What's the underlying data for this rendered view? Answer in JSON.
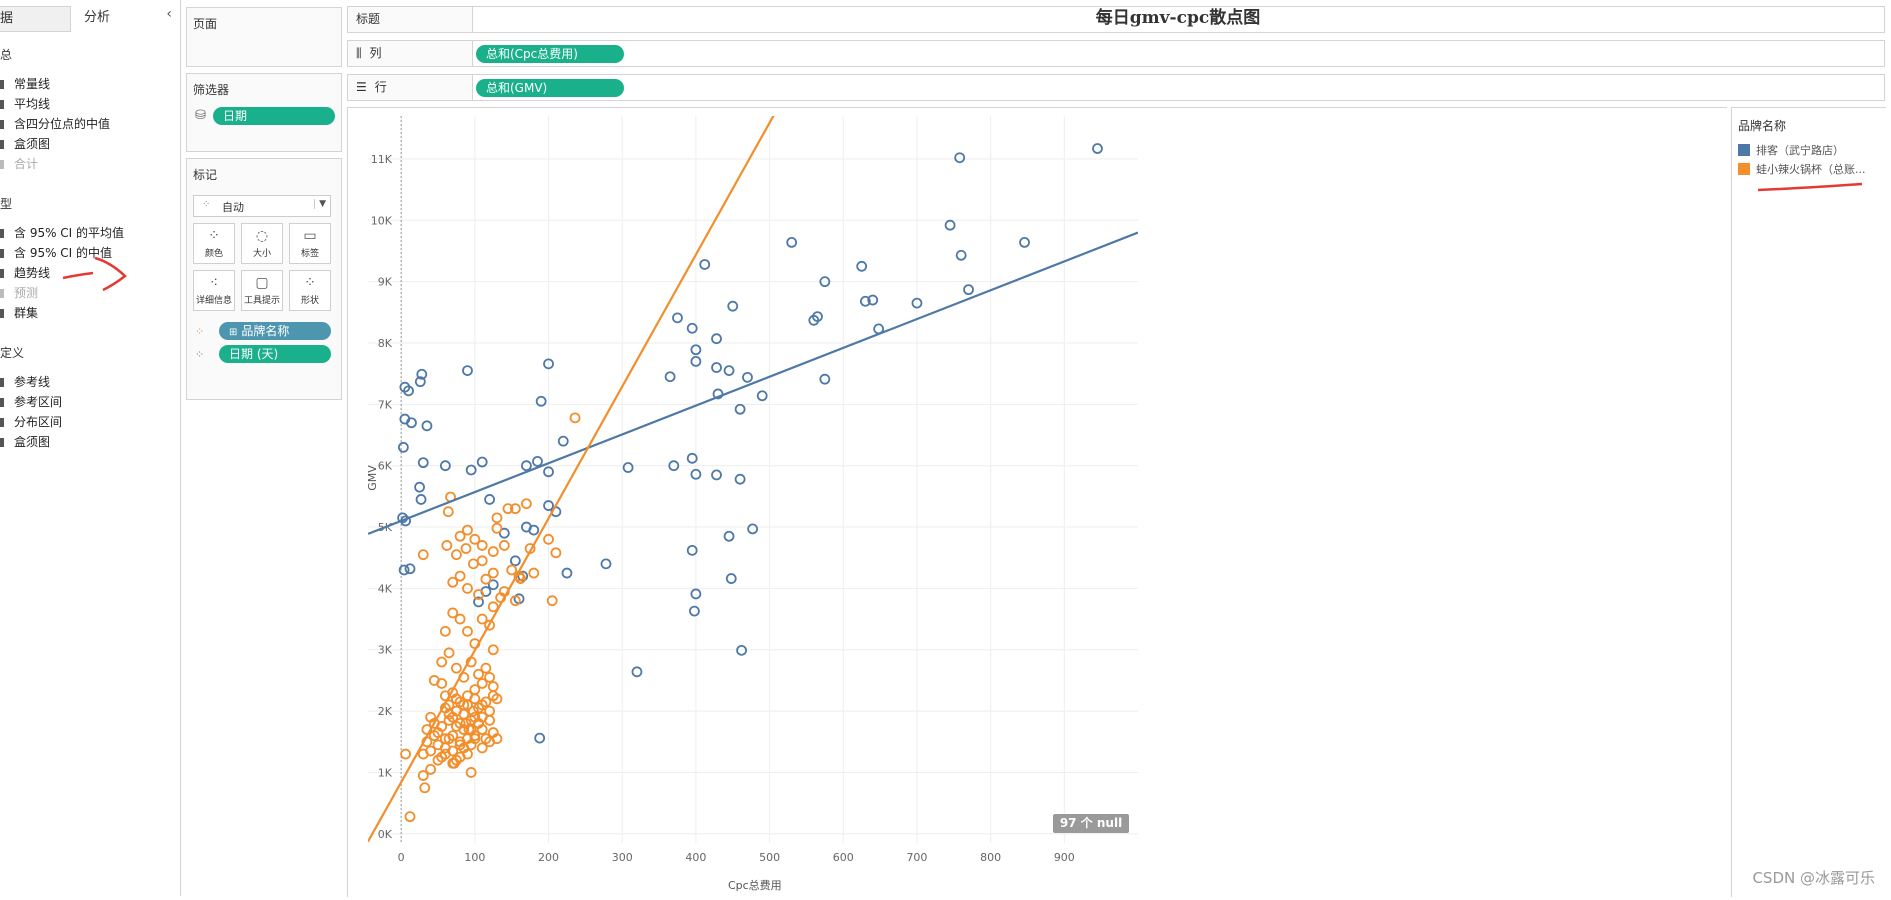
{
  "left_pane": {
    "tab_data": "据",
    "tab_analysis": "分析",
    "sections": [
      {
        "title": "汇总",
        "items": [
          {
            "label": "常量线",
            "enabled": true
          },
          {
            "label": "平均线",
            "enabled": true
          },
          {
            "label": "含四分位点的中值",
            "enabled": true
          },
          {
            "label": "盒须图",
            "enabled": true
          },
          {
            "label": "合计",
            "enabled": false
          }
        ]
      },
      {
        "title": "模型",
        "items": [
          {
            "label": "含 95% CI 的平均值",
            "enabled": true
          },
          {
            "label": "含 95% CI 的中值",
            "enabled": true
          },
          {
            "label": "趋势线",
            "enabled": true
          },
          {
            "label": "预测",
            "enabled": false
          },
          {
            "label": "群集",
            "enabled": true
          }
        ]
      },
      {
        "title": "自定义",
        "items": [
          {
            "label": "参考线",
            "enabled": true
          },
          {
            "label": "参考区间",
            "enabled": true
          },
          {
            "label": "分布区间",
            "enabled": true
          },
          {
            "label": "盒须图",
            "enabled": true
          }
        ]
      }
    ]
  },
  "cards": {
    "pages_title": "页面",
    "filters_title": "筛选器",
    "filter_pill": "日期",
    "marks_title": "标记",
    "marks_type": "自动",
    "mark_buttons": [
      "颜色",
      "大小",
      "标签",
      "详细信息",
      "工具提示",
      "形状"
    ],
    "mark_pills": [
      "品牌名称",
      "日期 (天)"
    ]
  },
  "shelves": {
    "title_label": "标题",
    "title_value": "每日gmv-cpc散点图",
    "columns_label": "列",
    "columns_pill": "总和(Cpc总费用)",
    "rows_label": "行",
    "rows_pill": "总和(GMV)"
  },
  "legend": {
    "title": "品牌名称",
    "items": [
      {
        "label": "排客（武宁路店）",
        "color": "#4e79a7"
      },
      {
        "label": "蛙小辣火锅杯（总账...",
        "color": "#f28e2b"
      }
    ]
  },
  "null_badge": "97 个 null",
  "watermark": "CSDN @冰露可乐",
  "chart_data": {
    "type": "scatter",
    "title": "每日gmv-cpc散点图",
    "xlabel": "Cpc总费用",
    "ylabel": "GMV",
    "xlim": [
      -45,
      1000
    ],
    "ylim": [
      -150,
      11700
    ],
    "x_ticks": [
      0,
      100,
      200,
      300,
      400,
      500,
      600,
      700,
      800,
      900
    ],
    "y_ticks": [
      0,
      1000,
      2000,
      3000,
      4000,
      5000,
      6000,
      7000,
      8000,
      9000,
      10000,
      11000
    ],
    "y_tick_labels": [
      "0K",
      "1K",
      "2K",
      "3K",
      "4K",
      "5K",
      "6K",
      "7K",
      "8K",
      "9K",
      "10K",
      "11K"
    ],
    "grid": true,
    "legend_position": "right",
    "series": [
      {
        "name": "排客（武宁路店）",
        "color": "#4e79a7",
        "trend": {
          "intercept": 5100,
          "slope": 4.7
        },
        "points": [
          [
            5,
            7280
          ],
          [
            10,
            7220
          ],
          [
            28,
            7490
          ],
          [
            26,
            7370
          ],
          [
            3,
            6300
          ],
          [
            5,
            6760
          ],
          [
            14,
            6700
          ],
          [
            35,
            6650
          ],
          [
            90,
            7550
          ],
          [
            2,
            5150
          ],
          [
            6,
            5100
          ],
          [
            25,
            5650
          ],
          [
            27,
            5450
          ],
          [
            30,
            6050
          ],
          [
            60,
            6000
          ],
          [
            95,
            5930
          ],
          [
            110,
            6060
          ],
          [
            120,
            5450
          ],
          [
            4,
            4300
          ],
          [
            12,
            4320
          ],
          [
            125,
            4060
          ],
          [
            115,
            3950
          ],
          [
            105,
            3780
          ],
          [
            160,
            3830
          ],
          [
            140,
            4900
          ],
          [
            170,
            5000
          ],
          [
            180,
            4950
          ],
          [
            200,
            5350
          ],
          [
            210,
            5250
          ],
          [
            155,
            4450
          ],
          [
            225,
            4250
          ],
          [
            165,
            4200
          ],
          [
            190,
            7050
          ],
          [
            200,
            7660
          ],
          [
            220,
            6400
          ],
          [
            170,
            6000
          ],
          [
            185,
            6070
          ],
          [
            200,
            5900
          ],
          [
            188,
            1560
          ],
          [
            278,
            4400
          ],
          [
            308,
            5970
          ],
          [
            320,
            2640
          ],
          [
            365,
            7450
          ],
          [
            375,
            8410
          ],
          [
            395,
            8240
          ],
          [
            400,
            7700
          ],
          [
            400,
            7890
          ],
          [
            412,
            9280
          ],
          [
            428,
            7600
          ],
          [
            428,
            8070
          ],
          [
            450,
            8600
          ],
          [
            445,
            7550
          ],
          [
            430,
            7170
          ],
          [
            460,
            6920
          ],
          [
            470,
            7440
          ],
          [
            490,
            7140
          ],
          [
            370,
            6000
          ],
          [
            395,
            6120
          ],
          [
            400,
            5860
          ],
          [
            428,
            5850
          ],
          [
            460,
            5780
          ],
          [
            445,
            4850
          ],
          [
            477,
            4970
          ],
          [
            395,
            4620
          ],
          [
            400,
            3910
          ],
          [
            398,
            3630
          ],
          [
            448,
            4160
          ],
          [
            462,
            2990
          ],
          [
            530,
            9640
          ],
          [
            560,
            8370
          ],
          [
            565,
            8430
          ],
          [
            575,
            9000
          ],
          [
            575,
            7410
          ],
          [
            625,
            9250
          ],
          [
            630,
            8680
          ],
          [
            640,
            8700
          ],
          [
            648,
            8230
          ],
          [
            700,
            8650
          ],
          [
            745,
            9920
          ],
          [
            760,
            9430
          ],
          [
            770,
            8870
          ],
          [
            758,
            11020
          ],
          [
            846,
            9640
          ],
          [
            945,
            11170
          ]
        ]
      },
      {
        "name": "蛙小辣火锅杯（总账...",
        "color": "#f28e2b",
        "trend": {
          "intercept": 840,
          "slope": 21.5
        },
        "points": [
          [
            236,
            6780
          ],
          [
            67,
            5490
          ],
          [
            64,
            5250
          ],
          [
            80,
            4850
          ],
          [
            90,
            4950
          ],
          [
            100,
            4800
          ],
          [
            130,
            5150
          ],
          [
            145,
            5300
          ],
          [
            155,
            5300
          ],
          [
            170,
            5380
          ],
          [
            130,
            4980
          ],
          [
            110,
            4700
          ],
          [
            125,
            4600
          ],
          [
            140,
            4700
          ],
          [
            175,
            4650
          ],
          [
            200,
            4800
          ],
          [
            210,
            4580
          ],
          [
            30,
            4550
          ],
          [
            62,
            4700
          ],
          [
            75,
            4550
          ],
          [
            88,
            4650
          ],
          [
            98,
            4400
          ],
          [
            110,
            4450
          ],
          [
            125,
            4250
          ],
          [
            150,
            4300
          ],
          [
            160,
            4200
          ],
          [
            180,
            4250
          ],
          [
            70,
            4100
          ],
          [
            80,
            4200
          ],
          [
            90,
            4000
          ],
          [
            105,
            3900
          ],
          [
            115,
            4150
          ],
          [
            125,
            3700
          ],
          [
            135,
            3850
          ],
          [
            140,
            3950
          ],
          [
            155,
            3800
          ],
          [
            162,
            4160
          ],
          [
            205,
            3800
          ],
          [
            60,
            3300
          ],
          [
            70,
            3600
          ],
          [
            80,
            3500
          ],
          [
            90,
            3300
          ],
          [
            100,
            3100
          ],
          [
            110,
            3500
          ],
          [
            120,
            3400
          ],
          [
            125,
            3000
          ],
          [
            55,
            2800
          ],
          [
            65,
            2950
          ],
          [
            75,
            2700
          ],
          [
            85,
            2550
          ],
          [
            95,
            2800
          ],
          [
            105,
            2600
          ],
          [
            115,
            2700
          ],
          [
            125,
            2400
          ],
          [
            130,
            2200
          ],
          [
            45,
            2500
          ],
          [
            55,
            2450
          ],
          [
            60,
            2250
          ],
          [
            65,
            2100
          ],
          [
            70,
            2300
          ],
          [
            75,
            2000
          ],
          [
            80,
            2150
          ],
          [
            85,
            1950
          ],
          [
            90,
            2100
          ],
          [
            95,
            1850
          ],
          [
            100,
            2200
          ],
          [
            105,
            2050
          ],
          [
            110,
            1900
          ],
          [
            115,
            2150
          ],
          [
            120,
            2000
          ],
          [
            125,
            2250
          ],
          [
            35,
            1700
          ],
          [
            40,
            1900
          ],
          [
            45,
            1800
          ],
          [
            50,
            1650
          ],
          [
            55,
            1750
          ],
          [
            60,
            1550
          ],
          [
            65,
            1850
          ],
          [
            70,
            1600
          ],
          [
            75,
            1750
          ],
          [
            80,
            1450
          ],
          [
            85,
            1700
          ],
          [
            90,
            1550
          ],
          [
            95,
            1700
          ],
          [
            100,
            1600
          ],
          [
            105,
            1800
          ],
          [
            110,
            1700
          ],
          [
            115,
            1550
          ],
          [
            120,
            1850
          ],
          [
            125,
            1650
          ],
          [
            30,
            1300
          ],
          [
            35,
            1500
          ],
          [
            40,
            1350
          ],
          [
            45,
            1600
          ],
          [
            50,
            1450
          ],
          [
            55,
            1250
          ],
          [
            60,
            1400
          ],
          [
            65,
            1550
          ],
          [
            70,
            1350
          ],
          [
            75,
            1200
          ],
          [
            80,
            1500
          ],
          [
            85,
            1400
          ],
          [
            90,
            1300
          ],
          [
            95,
            1450
          ],
          [
            100,
            1550
          ],
          [
            110,
            1400
          ],
          [
            120,
            1500
          ],
          [
            130,
            1550
          ],
          [
            40,
            1050
          ],
          [
            50,
            1200
          ],
          [
            60,
            1300
          ],
          [
            70,
            1150
          ],
          [
            80,
            1250
          ],
          [
            95,
            1000
          ],
          [
            6,
            1300
          ],
          [
            30,
            950
          ],
          [
            32,
            750
          ],
          [
            12,
            280
          ],
          [
            72,
            1150
          ],
          [
            105,
            1800
          ],
          [
            85,
            2100
          ],
          [
            75,
            2200
          ],
          [
            90,
            2250
          ],
          [
            100,
            2350
          ],
          [
            110,
            2450
          ],
          [
            120,
            2550
          ],
          [
            60,
            2050
          ],
          [
            65,
            1950
          ],
          [
            100,
            1900
          ],
          [
            98,
            2000
          ],
          [
            110,
            2100
          ],
          [
            88,
            1800
          ],
          [
            80,
            1800
          ],
          [
            70,
            1900
          ],
          [
            92,
            1700
          ]
        ]
      }
    ]
  }
}
